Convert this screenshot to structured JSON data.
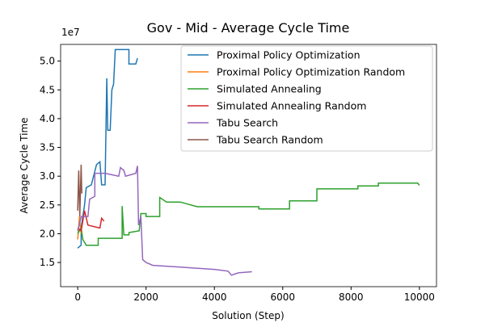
{
  "chart_data": {
    "type": "line",
    "title": "Gov - Mid - Average Cycle Time",
    "x_label": "Solution (Step)",
    "y_label": "Average Cycle Time",
    "y_offset_label": "1e7",
    "xlim": [
      -500,
      10500
    ],
    "ylim": [
      1.08,
      5.29
    ],
    "xticks": [
      0,
      2000,
      4000,
      6000,
      8000,
      10000
    ],
    "yticks": [
      1.5,
      {
        "value": 2,
        "label": "2.0"
      },
      2.5,
      {
        "value": 3,
        "label": "3.0"
      },
      3.5,
      {
        "value": 4,
        "label": "4.0"
      },
      4.5,
      {
        "value": 5,
        "label": "5.0"
      }
    ],
    "legend": "upper right",
    "series": [
      {
        "name": "Proximal Policy Optimization",
        "color": "#1f77b4",
        "x": [
          0,
          100,
          100,
          200,
          250,
          400,
          550,
          650,
          700,
          800,
          850,
          880,
          950,
          1000,
          1050,
          1100,
          1500,
          1500,
          1700,
          1750
        ],
        "values": [
          1.75,
          1.8,
          2.1,
          2.5,
          2.8,
          2.85,
          3.2,
          3.25,
          2.85,
          2.85,
          4.7,
          3.8,
          3.8,
          4.5,
          4.6,
          5.2,
          5.2,
          4.95,
          4.95,
          5.05
        ]
      },
      {
        "name": "Proximal Policy Optimization Random",
        "color": "#ff7f0e",
        "x": [
          0,
          20,
          50,
          80,
          100
        ],
        "values": [
          1.9,
          2.05,
          2.3,
          2.1,
          2.0
        ]
      },
      {
        "name": "Simulated Annealing",
        "color": "#2ca02c",
        "x": [
          0,
          100,
          150,
          250,
          600,
          600,
          1300,
          1300,
          1350,
          1500,
          1500,
          1800,
          1850,
          2000,
          2000,
          2400,
          2400,
          2600,
          3000,
          3500,
          5300,
          5300,
          6200,
          6200,
          7000,
          7000,
          8200,
          8200,
          8800,
          8800,
          9950,
          10000
        ],
        "values": [
          2.0,
          2.1,
          1.9,
          1.8,
          1.8,
          1.92,
          1.92,
          2.48,
          1.98,
          1.98,
          2.02,
          2.05,
          2.35,
          2.35,
          2.3,
          2.3,
          2.63,
          2.55,
          2.55,
          2.47,
          2.47,
          2.43,
          2.43,
          2.57,
          2.57,
          2.78,
          2.78,
          2.83,
          2.83,
          2.88,
          2.88,
          2.84
        ]
      },
      {
        "name": "Simulated Annealing Random",
        "color": "#d62728",
        "x": [
          0,
          100,
          200,
          300,
          500,
          650,
          700,
          770
        ],
        "values": [
          2.1,
          2.05,
          2.4,
          2.15,
          2.12,
          2.1,
          2.27,
          2.22
        ]
      },
      {
        "name": "Tabu Search",
        "color": "#9467bd",
        "x": [
          0,
          100,
          300,
          350,
          500,
          500,
          800,
          1200,
          1250,
          1350,
          1400,
          1700,
          1750,
          1780,
          1850,
          1900,
          2000,
          2200,
          3000,
          3500,
          4000,
          4400,
          4500,
          4700,
          5100
        ],
        "values": [
          2.05,
          2.3,
          2.3,
          2.6,
          2.65,
          3.05,
          3.05,
          3.0,
          3.15,
          3.1,
          3.0,
          3.05,
          3.18,
          2.15,
          2.3,
          1.55,
          1.5,
          1.45,
          1.42,
          1.4,
          1.38,
          1.35,
          1.28,
          1.32,
          1.34
        ]
      },
      {
        "name": "Tabu Search Random",
        "color": "#8c564b",
        "x": [
          0,
          30,
          60,
          100,
          120
        ],
        "values": [
          2.4,
          3.1,
          2.3,
          3.2,
          2.7
        ]
      }
    ]
  }
}
